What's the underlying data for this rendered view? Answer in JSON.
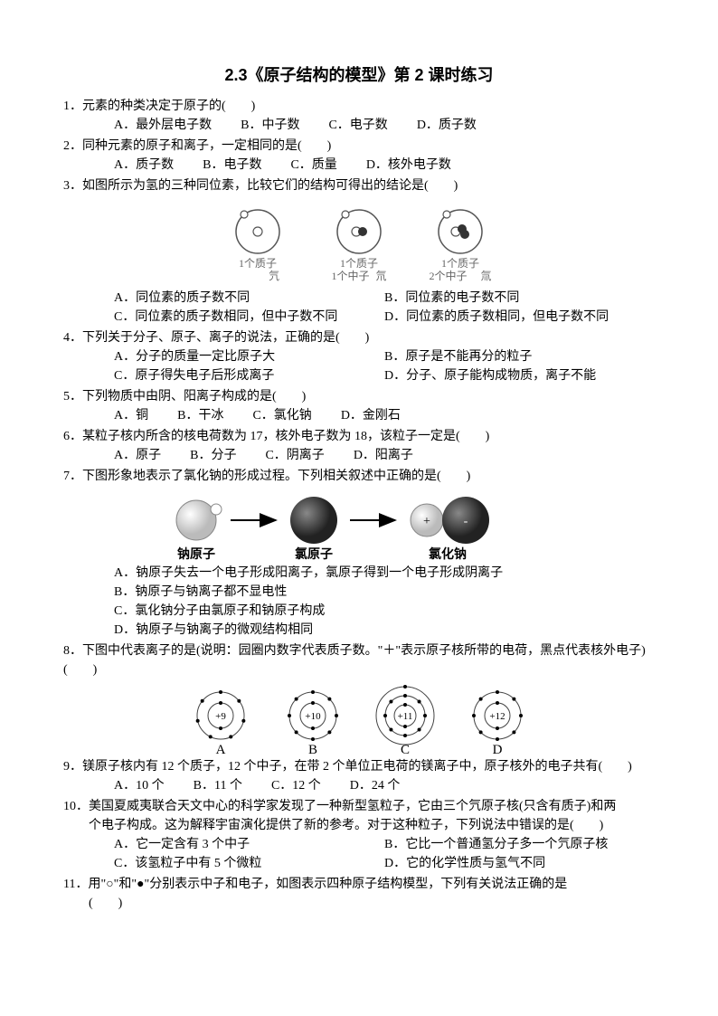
{
  "title": "2.3《原子结构的模型》第 2 课时练习",
  "colors": {
    "text": "#000000",
    "bg": "#ffffff",
    "gray": "#777777",
    "lightgray": "#cccccc"
  },
  "q1": {
    "stem": "1．元素的种类决定于原子的(　　)",
    "A": "A．最外层电子数",
    "B": "B．中子数",
    "C": "C．电子数",
    "D": "D．质子数"
  },
  "q2": {
    "stem": "2．同种元素的原子和离子，一定相同的是(　　)",
    "A": "A．质子数",
    "B": "B．电子数",
    "C": "C．质量",
    "D": "D．核外电子数"
  },
  "q3": {
    "stem": "3．如图所示为氢的三种同位素，比较它们的结构可得出的结论是(　　)",
    "fig": [
      {
        "top": "1个质子",
        "name": "氕",
        "neutrons": 0
      },
      {
        "top": "1个质子",
        "mid": "1个中子",
        "name": "氘",
        "neutrons": 1
      },
      {
        "top": "1个质子",
        "mid": "2个中子",
        "name": "氚",
        "neutrons": 2
      }
    ],
    "A": "A．同位素的质子数不同",
    "B": "B．同位素的电子数不同",
    "C": "C．同位素的质子数相同，但中子数不同",
    "D": "D．同位素的质子数相同，但电子数不同"
  },
  "q4": {
    "stem": "4．下列关于分子、原子、离子的说法，正确的是(　　)",
    "A": "A．分子的质量一定比原子大",
    "B": "B．原子是不能再分的粒子",
    "C": "C．原子得失电子后形成离子",
    "D": "D．分子、原子能构成物质，离子不能"
  },
  "q5": {
    "stem": "5．下列物质中由阴、阳离子构成的是(　　)",
    "A": "A．铜",
    "B": "B．干冰",
    "C": "C．氯化钠",
    "D": "D．金刚石"
  },
  "q6": {
    "stem": "6．某粒子核内所含的核电荷数为 17，核外电子数为 18，该粒子一定是(　　)",
    "A": "A．原子",
    "B": "B．分子",
    "C": "C．阴离子",
    "D": "D．阳离子"
  },
  "q7": {
    "stem": "7．下图形象地表示了氯化钠的形成过程。下列相关叙述中正确的是(　　)",
    "labels": [
      "钠原子",
      "氯原子",
      "氯化钠"
    ],
    "A": "A．钠原子失去一个电子形成阳离子，氯原子得到一个电子形成阴离子",
    "B": "B．钠原子与钠离子都不显电性",
    "C": "C．氯化钠分子由氯原子和钠原子构成",
    "D": "D．钠原子与钠离子的微观结构相同"
  },
  "q8": {
    "stem": "8．下图中代表离子的是(说明：园圈内数字代表质子数。\"＋\"表示原子核所带的电荷，黑点代表核外电子)(　　)",
    "atoms": [
      {
        "L": "A",
        "p": "+9",
        "shells": [
          2,
          7
        ]
      },
      {
        "L": "B",
        "p": "+10",
        "shells": [
          2,
          8
        ]
      },
      {
        "L": "C",
        "p": "+11",
        "shells": [
          2,
          8,
          1
        ]
      },
      {
        "L": "D",
        "p": "+12",
        "shells": [
          2,
          8
        ]
      }
    ]
  },
  "q9": {
    "stem": "9．镁原子核内有 12 个质子，12 个中子，在带 2 个单位正电荷的镁离子中，原子核外的电子共有(　　)",
    "A": "A．10 个",
    "B": "B．11 个",
    "C": "C．12 个",
    "D": "D．24 个"
  },
  "q10": {
    "stem1": "10．美国夏威夷联合天文中心的科学家发现了一种新型氢粒子，它由三个氕原子核(只含有质子)和两",
    "stem2": "个电子构成。这为解释宇宙演化提供了新的参考。对于这种粒子，下列说法中错误的是(　　)",
    "A": "A．它一定含有 3 个中子",
    "B": "B．它比一个普通氢分子多一个氕原子核",
    "C": "C．该氢粒子中有 5 个微粒",
    "D": "D．它的化学性质与氢气不同"
  },
  "q11": {
    "stem1": "11．用\"○\"和\"●\"分别表示中子和电子，如图表示四种原子结构模型，下列有关说法正确的是",
    "stem2": "(　　)"
  }
}
